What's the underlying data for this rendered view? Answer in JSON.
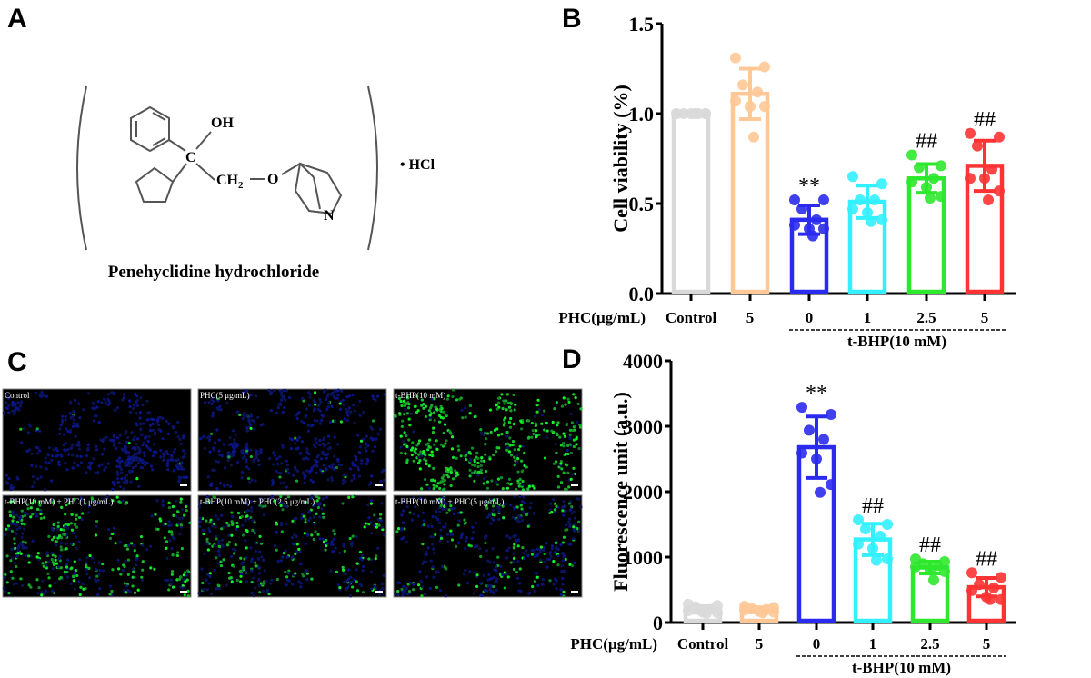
{
  "panels": {
    "a": "A",
    "b": "B",
    "c": "C",
    "d": "D"
  },
  "structure": {
    "title": "Penehyclidine hydrochloride",
    "oh": "OH",
    "c": "C",
    "ch2": "CH",
    "ch2_sub": "2",
    "o": "O",
    "n": "N",
    "salt": "• HCl"
  },
  "micrographs": [
    {
      "label": "Control",
      "green": 0.02,
      "blue": 0.6
    },
    {
      "label": "PHC(5 μg/mL)",
      "green": 0.04,
      "blue": 0.6
    },
    {
      "label": "t-BHP(10 mM)",
      "green": 0.9,
      "blue": 0.3
    },
    {
      "label": "t-BHP(10 mM) + PHC(1 μg/mL)",
      "green": 0.55,
      "blue": 0.35
    },
    {
      "label": "t-BHP(10 mM) + PHC(2.5 μg/mL)",
      "green": 0.4,
      "blue": 0.5
    },
    {
      "label": "t-BHP(10 mM) + PHC(5 μg/mL)",
      "green": 0.25,
      "blue": 0.6
    }
  ],
  "colors": [
    "#d9d9d9",
    "#ffc896",
    "#2b2bf0",
    "#33f0ff",
    "#2ee82e",
    "#ff3333"
  ],
  "chart_data": [
    {
      "type": "bar",
      "title": "",
      "ylabel": "Cell viability (%)",
      "row_label": "PHC(μg/mL)",
      "group_label": "t-BHP(10 mM)",
      "categories": [
        "Control",
        "5",
        "0",
        "1",
        "2.5",
        "5"
      ],
      "ylim": [
        0,
        1.5
      ],
      "yticks": [
        "0.0",
        "0.5",
        "1.0",
        "1.5"
      ],
      "ytick_values": [
        0,
        0.5,
        1.0,
        1.5
      ],
      "means": [
        1.0,
        1.11,
        0.41,
        0.51,
        0.64,
        0.71
      ],
      "sd": [
        0.0,
        0.14,
        0.08,
        0.09,
        0.08,
        0.14
      ],
      "points": [
        [
          1,
          1,
          1,
          1,
          1,
          1,
          1,
          1
        ],
        [
          1.31,
          1.26,
          1.16,
          1.12,
          1.07,
          1.04,
          1.04,
          0.87
        ],
        [
          0.52,
          0.52,
          0.47,
          0.41,
          0.38,
          0.36,
          0.36,
          0.32
        ],
        [
          0.65,
          0.61,
          0.52,
          0.52,
          0.47,
          0.45,
          0.41,
          0.4
        ],
        [
          0.77,
          0.71,
          0.7,
          0.64,
          0.62,
          0.59,
          0.54,
          0.53
        ],
        [
          0.89,
          0.87,
          0.82,
          0.69,
          0.64,
          0.64,
          0.57,
          0.52
        ]
      ],
      "annotations": [
        "",
        "",
        "**",
        "",
        "##",
        "##"
      ]
    },
    {
      "type": "bar",
      "title": "",
      "ylabel": "Fluorescence unit (a.u.)",
      "row_label": "PHC(μg/mL)",
      "group_label": "t-BHP(10 mM)",
      "categories": [
        "Control",
        "5",
        "0",
        "1",
        "2.5",
        "5"
      ],
      "ylim": [
        0,
        4000
      ],
      "yticks": [
        "0",
        "1000",
        "2000",
        "3000",
        "4000"
      ],
      "ytick_values": [
        0,
        1000,
        2000,
        3000,
        4000
      ],
      "means": [
        200,
        195,
        2680,
        1270,
        840,
        540
      ],
      "sd": [
        50,
        40,
        470,
        240,
        90,
        140
      ],
      "points": [
        [
          280,
          260,
          240,
          200,
          180,
          160,
          150,
          140
        ],
        [
          250,
          230,
          210,
          200,
          190,
          170,
          160,
          150
        ],
        [
          3290,
          3180,
          2940,
          2800,
          2590,
          2500,
          2110,
          1990
        ],
        [
          1570,
          1500,
          1430,
          1320,
          1200,
          1130,
          970,
          950
        ],
        [
          970,
          930,
          900,
          870,
          850,
          800,
          780,
          650
        ],
        [
          760,
          690,
          580,
          530,
          490,
          390,
          350,
          350
        ]
      ],
      "annotations": [
        "",
        "",
        "**",
        "##",
        "##",
        "##"
      ]
    }
  ]
}
